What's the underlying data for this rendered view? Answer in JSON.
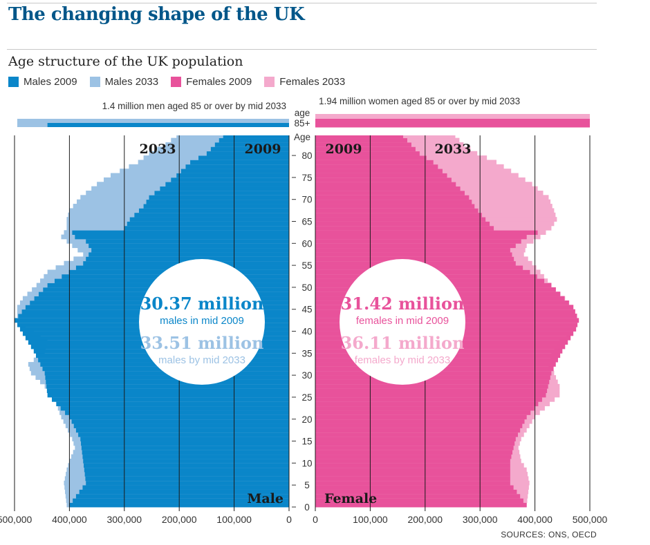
{
  "title": "The changing shape of the UK",
  "subtitle": "Age structure of the UK population",
  "legend": [
    {
      "label": "Males 2009",
      "color": "#0a86c9"
    },
    {
      "label": "Males 2033",
      "color": "#9cc2e4"
    },
    {
      "label": "Females 2009",
      "color": "#e8529b"
    },
    {
      "label": "Females 2033",
      "color": "#f4a9cc"
    }
  ],
  "source": "SOURCES: ONS, OECD",
  "chart_data": {
    "type": "population-pyramid",
    "xlim": [
      0,
      500000
    ],
    "ylim": [
      0,
      84
    ],
    "x_ticks": [
      0,
      100000,
      200000,
      300000,
      400000,
      500000
    ],
    "x_tick_labels": [
      "0",
      "100,000",
      "200,000",
      "300,000",
      "400,000",
      "500,000"
    ],
    "age_ticks": [
      0,
      5,
      10,
      15,
      20,
      25,
      30,
      35,
      40,
      45,
      50,
      55,
      60,
      65,
      70,
      75,
      80
    ],
    "age_label": "Age",
    "open_age_group": {
      "label_line1": "age",
      "label_line2": "85+",
      "male_note": "1.4 million men aged 85 or over by mid 2033",
      "female_note": "1.94 million women aged 85 or over by mid 2033",
      "male_2009": 440000,
      "male_2033": 495000,
      "female_2009": 500000,
      "female_2033": 500000
    },
    "side_labels": {
      "male": "Male",
      "female": "Female"
    },
    "year_labels": {
      "male_2033": "2033",
      "male_2009": "2009",
      "female_2009": "2009",
      "female_2033": "2033"
    },
    "male_anchors_2009": [
      [
        0,
        400000
      ],
      [
        5,
        370000
      ],
      [
        10,
        375000
      ],
      [
        15,
        380000
      ],
      [
        20,
        400000
      ],
      [
        25,
        440000
      ],
      [
        30,
        445000
      ],
      [
        35,
        465000
      ],
      [
        40,
        490000
      ],
      [
        42,
        500000
      ],
      [
        45,
        480000
      ],
      [
        50,
        440000
      ],
      [
        55,
        375000
      ],
      [
        58,
        360000
      ],
      [
        60,
        370000
      ],
      [
        61,
        390000
      ],
      [
        62,
        395000
      ],
      [
        63,
        300000
      ],
      [
        65,
        290000
      ],
      [
        68,
        265000
      ],
      [
        70,
        255000
      ],
      [
        75,
        205000
      ],
      [
        78,
        180000
      ],
      [
        80,
        150000
      ],
      [
        84,
        120000
      ]
    ],
    "male_anchors_2033": [
      [
        0,
        405000
      ],
      [
        5,
        410000
      ],
      [
        8,
        405000
      ],
      [
        10,
        400000
      ],
      [
        13,
        390000
      ],
      [
        15,
        395000
      ],
      [
        20,
        415000
      ],
      [
        25,
        430000
      ],
      [
        27,
        445000
      ],
      [
        30,
        470000
      ],
      [
        32,
        475000
      ],
      [
        35,
        445000
      ],
      [
        38,
        440000
      ],
      [
        40,
        465000
      ],
      [
        42,
        495000
      ],
      [
        45,
        495000
      ],
      [
        47,
        485000
      ],
      [
        50,
        460000
      ],
      [
        53,
        440000
      ],
      [
        55,
        410000
      ],
      [
        57,
        375000
      ],
      [
        59,
        395000
      ],
      [
        61,
        415000
      ],
      [
        63,
        405000
      ],
      [
        65,
        405000
      ],
      [
        67,
        400000
      ],
      [
        70,
        380000
      ],
      [
        73,
        350000
      ],
      [
        75,
        325000
      ],
      [
        78,
        275000
      ],
      [
        80,
        255000
      ],
      [
        82,
        225000
      ],
      [
        84,
        205000
      ]
    ],
    "female_anchors_2009": [
      [
        0,
        385000
      ],
      [
        5,
        355000
      ],
      [
        10,
        355000
      ],
      [
        15,
        365000
      ],
      [
        20,
        385000
      ],
      [
        25,
        420000
      ],
      [
        30,
        430000
      ],
      [
        35,
        450000
      ],
      [
        40,
        475000
      ],
      [
        42,
        480000
      ],
      [
        45,
        470000
      ],
      [
        50,
        430000
      ],
      [
        55,
        365000
      ],
      [
        58,
        355000
      ],
      [
        60,
        375000
      ],
      [
        61,
        385000
      ],
      [
        62,
        405000
      ],
      [
        63,
        325000
      ],
      [
        65,
        310000
      ],
      [
        68,
        290000
      ],
      [
        70,
        280000
      ],
      [
        75,
        240000
      ],
      [
        78,
        215000
      ],
      [
        80,
        190000
      ],
      [
        84,
        160000
      ]
    ],
    "female_anchors_2033": [
      [
        0,
        385000
      ],
      [
        5,
        390000
      ],
      [
        8,
        385000
      ],
      [
        10,
        375000
      ],
      [
        13,
        370000
      ],
      [
        15,
        375000
      ],
      [
        20,
        400000
      ],
      [
        25,
        445000
      ],
      [
        27,
        445000
      ],
      [
        30,
        435000
      ],
      [
        32,
        425000
      ],
      [
        35,
        430000
      ],
      [
        38,
        445000
      ],
      [
        40,
        470000
      ],
      [
        42,
        480000
      ],
      [
        45,
        470000
      ],
      [
        47,
        455000
      ],
      [
        50,
        430000
      ],
      [
        53,
        410000
      ],
      [
        55,
        395000
      ],
      [
        57,
        380000
      ],
      [
        59,
        385000
      ],
      [
        61,
        410000
      ],
      [
        63,
        430000
      ],
      [
        65,
        440000
      ],
      [
        67,
        435000
      ],
      [
        70,
        425000
      ],
      [
        73,
        395000
      ],
      [
        75,
        370000
      ],
      [
        78,
        330000
      ],
      [
        80,
        295000
      ],
      [
        82,
        270000
      ],
      [
        84,
        255000
      ]
    ]
  },
  "circles": {
    "male": {
      "figure_2009": "30.37 million",
      "text_2009": "males in mid 2009",
      "figure_2033": "33.51 million",
      "text_2033": "males by mid 2033"
    },
    "female": {
      "figure_2009": "31.42 million",
      "text_2009": "females in mid 2009",
      "figure_2033": "36.11 million",
      "text_2033": "females by mid 2033"
    }
  }
}
